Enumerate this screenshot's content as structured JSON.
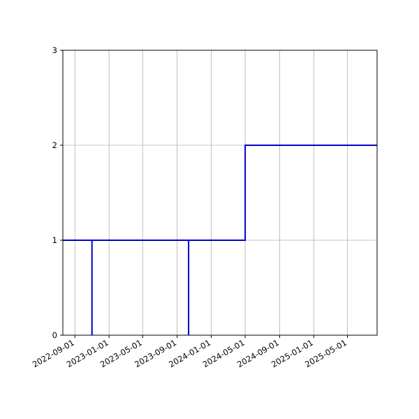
{
  "chart_data": {
    "type": "line",
    "line_style": "step",
    "x_axis": {
      "type": "date",
      "range": [
        "2022-07-20",
        "2025-08-15"
      ],
      "ticks": [
        "2022-09-01",
        "2023-01-01",
        "2023-05-01",
        "2023-09-01",
        "2024-01-01",
        "2024-05-01",
        "2024-09-01",
        "2025-01-01",
        "2025-05-01"
      ]
    },
    "y_axis": {
      "range": [
        0,
        3
      ],
      "ticks": [
        0,
        1,
        2,
        3
      ],
      "tick_labels": [
        "0",
        "1",
        "2",
        "3"
      ]
    },
    "grid": true,
    "series": [
      {
        "color": "#0000cc",
        "points": [
          {
            "x": "2022-07-20",
            "y": 1
          },
          {
            "x": "2022-11-01",
            "y": 1
          },
          {
            "x": "2022-11-01",
            "y": 0
          },
          {
            "x": "2022-11-01",
            "y": 1
          },
          {
            "x": "2023-10-12",
            "y": 1
          },
          {
            "x": "2023-10-12",
            "y": 0
          },
          {
            "x": "2023-10-12",
            "y": 1
          },
          {
            "x": "2024-05-01",
            "y": 1
          },
          {
            "x": "2024-05-01",
            "y": 2
          },
          {
            "x": "2025-08-15",
            "y": 2
          }
        ]
      }
    ]
  }
}
